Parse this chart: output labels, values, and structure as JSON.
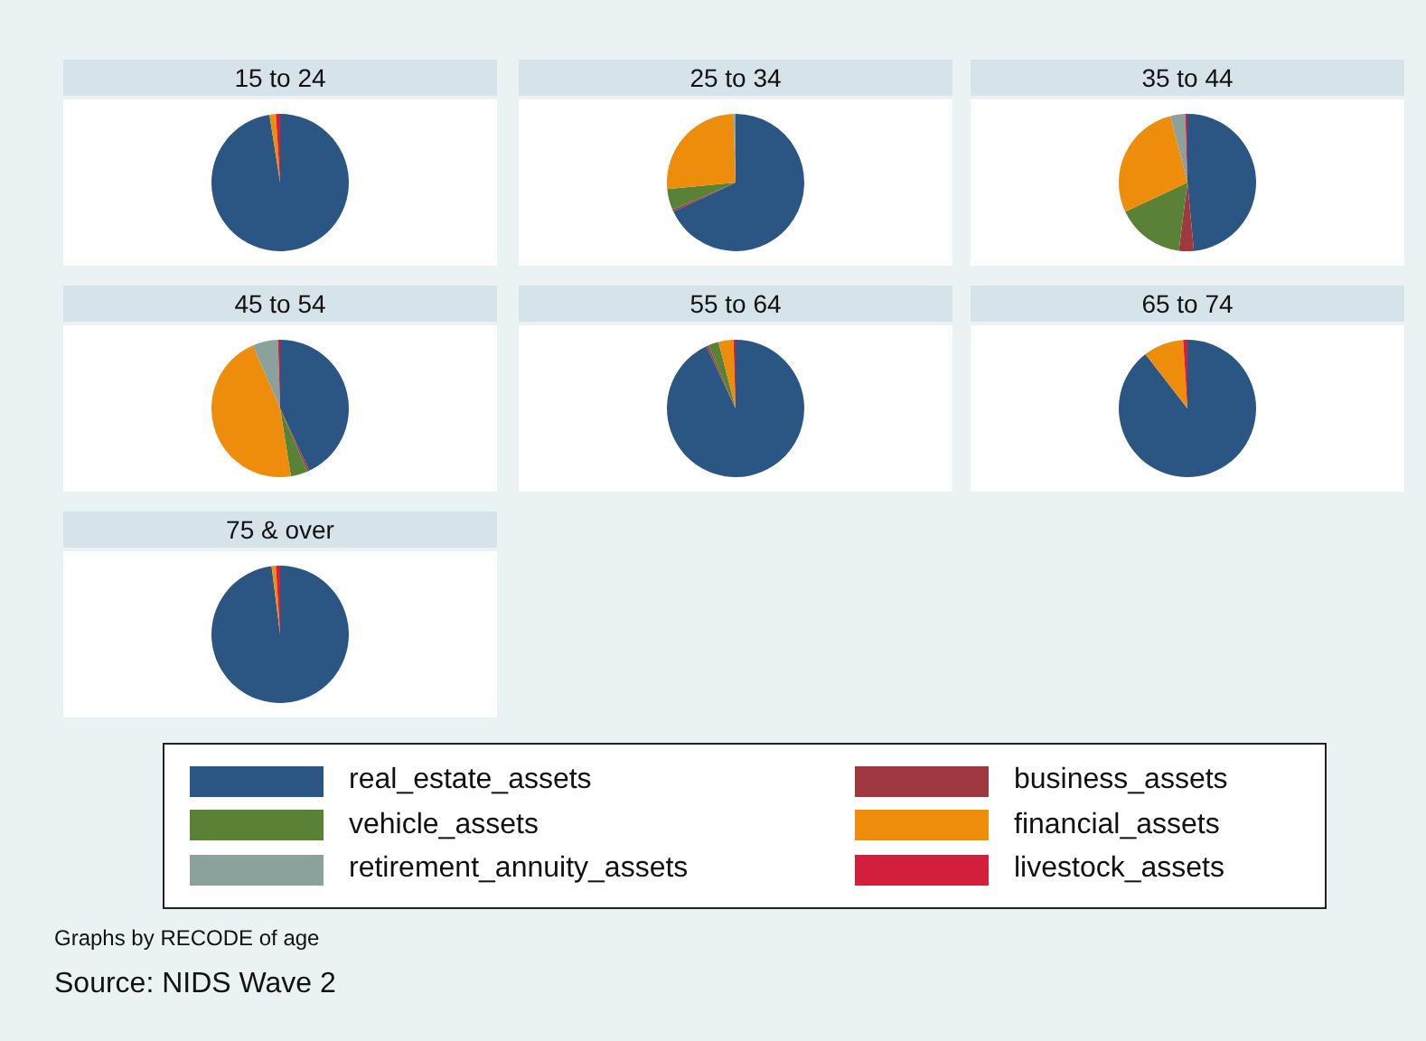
{
  "chart_data": [
    {
      "type": "pie",
      "title": "15 to 24",
      "categories": [
        "real_estate_assets",
        "business_assets",
        "vehicle_assets",
        "financial_assets",
        "retirement_annuity_assets",
        "livestock_assets"
      ],
      "values": [
        97.5,
        0,
        0,
        1.5,
        0,
        1
      ],
      "colors": [
        "#2b5683",
        "#a0393f",
        "#5a8236",
        "#ee8c0c",
        "#8aa29b",
        "#d21f3c"
      ],
      "legend": "bottom",
      "annotations": [
        "Graphs by RECODE of age",
        "Source: NIDS Wave 2"
      ]
    },
    {
      "type": "pie",
      "title": "25 to 34",
      "categories": [
        null,
        null,
        null,
        null,
        null,
        null
      ],
      "values": [
        68,
        0.5,
        5,
        26,
        0.5,
        0
      ],
      "colors": [
        "#2b5683",
        "#a0393f",
        "#5a8236",
        "#ee8c0c",
        "#8aa29b",
        "#d21f3c"
      ]
    },
    {
      "type": "pie",
      "title": "35 to 44",
      "categories": [
        null,
        null,
        null,
        null,
        null,
        null
      ],
      "values": [
        48.5,
        3.5,
        16,
        28,
        3.5,
        0.5
      ],
      "colors": [
        "#2b5683",
        "#a0393f",
        "#5a8236",
        "#ee8c0c",
        "#8aa29b",
        "#d21f3c"
      ]
    },
    {
      "type": "pie",
      "title": "45 to 54",
      "categories": [
        null,
        null,
        null,
        null,
        null,
        null
      ],
      "values": [
        43,
        0.5,
        4,
        46,
        6,
        0.5
      ],
      "colors": [
        "#2b5683",
        "#a0393f",
        "#5a8236",
        "#ee8c0c",
        "#8aa29b",
        "#d21f3c"
      ]
    },
    {
      "type": "pie",
      "title": "55 to 64",
      "categories": [
        null,
        null,
        null,
        null,
        null,
        null
      ],
      "values": [
        93,
        0.5,
        2.5,
        3.5,
        0,
        0.5
      ],
      "colors": [
        "#2b5683",
        "#a0393f",
        "#5a8236",
        "#ee8c0c",
        "#8aa29b",
        "#d21f3c"
      ]
    },
    {
      "type": "pie",
      "title": "65 to 74",
      "categories": [
        null,
        null,
        null,
        null,
        null,
        null
      ],
      "values": [
        89.5,
        0,
        0,
        9.5,
        0,
        1
      ],
      "colors": [
        "#2b5683",
        "#a0393f",
        "#5a8236",
        "#ee8c0c",
        "#8aa29b",
        "#d21f3c"
      ]
    },
    {
      "type": "pie",
      "title": "75 & over",
      "categories": [
        null,
        null,
        null,
        null,
        null,
        null
      ],
      "values": [
        98,
        0,
        0,
        1,
        0,
        1
      ],
      "colors": [
        "#2b5683",
        "#a0393f",
        "#5a8236",
        "#ee8c0c",
        "#8aa29b",
        "#d21f3c"
      ]
    }
  ]
}
